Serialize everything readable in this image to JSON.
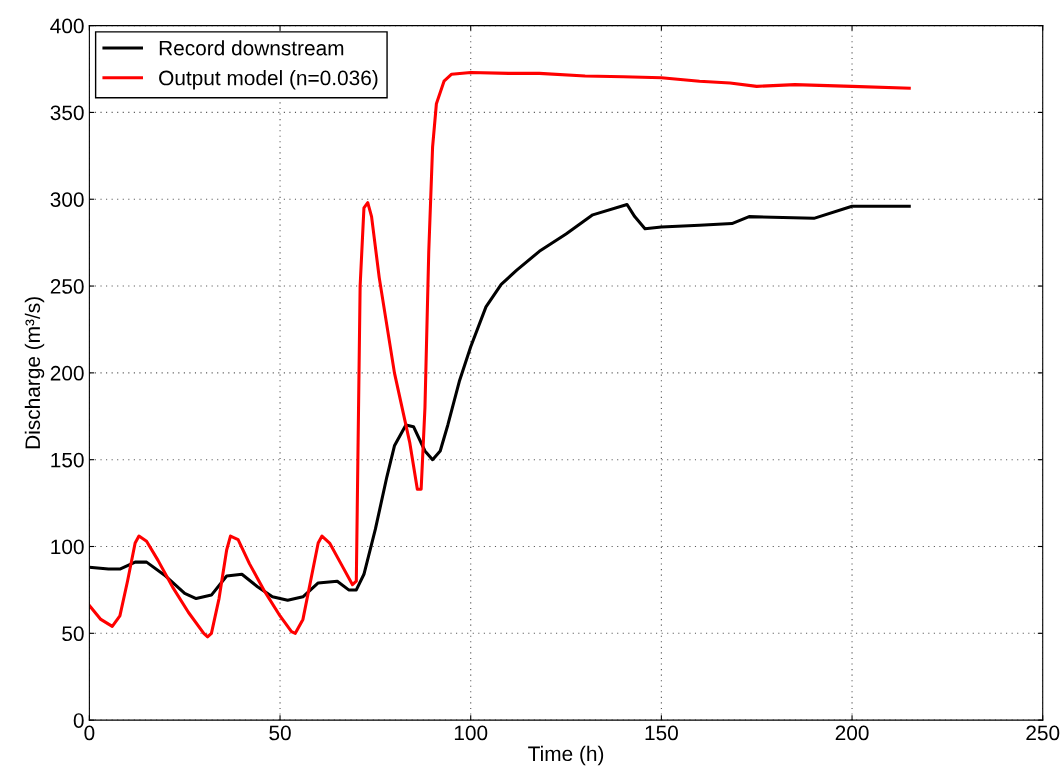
{
  "chart_data": {
    "type": "line",
    "xlabel": "Time (h)",
    "ylabel": "Discharge (m³/s)",
    "xlim": [
      0,
      250
    ],
    "ylim": [
      0,
      400
    ],
    "xticks": [
      0,
      50,
      100,
      150,
      200,
      250
    ],
    "yticks": [
      0,
      50,
      100,
      150,
      200,
      250,
      300,
      350,
      400
    ],
    "grid": true,
    "legend": "top left",
    "line_style": "solid",
    "series": [
      {
        "name": "Record downstream",
        "color": "#000000",
        "x": [
          0,
          5,
          8,
          12,
          15,
          20,
          25,
          28,
          32,
          36,
          40,
          44,
          48,
          52,
          56,
          60,
          65,
          68,
          70,
          72,
          75,
          78,
          80,
          83,
          85,
          88,
          90,
          92,
          94,
          97,
          100,
          104,
          108,
          112,
          118,
          125,
          132,
          141,
          143,
          145.7,
          150,
          160,
          168.5,
          173,
          190,
          200,
          215
        ],
        "values": [
          88,
          87,
          87,
          91,
          91,
          83,
          73,
          70,
          72,
          83,
          84,
          77,
          71,
          69,
          71,
          79,
          80,
          75,
          75,
          84,
          110,
          140,
          158,
          170,
          169,
          155,
          150,
          155,
          170,
          195,
          215,
          238,
          251,
          259,
          270,
          280,
          291,
          297,
          290,
          283,
          284,
          285,
          286,
          290,
          289,
          296,
          296
        ]
      },
      {
        "name": "Output model (n=0.036)",
        "color": "#ff0000",
        "x": [
          0,
          3,
          6,
          8,
          10,
          12,
          13,
          15,
          18,
          22,
          26,
          30,
          31,
          32,
          34,
          36,
          37,
          39,
          42,
          46,
          50,
          53,
          54,
          56,
          58,
          60,
          61,
          63,
          66,
          69,
          70,
          71,
          72,
          73,
          74,
          76,
          80,
          84,
          86,
          87,
          88,
          89,
          90,
          91,
          93,
          95,
          100,
          110,
          118,
          130,
          140,
          150,
          160,
          168,
          175,
          185,
          200,
          215
        ],
        "values": [
          66,
          58,
          54,
          60,
          80,
          102,
          106,
          103,
          92,
          76,
          62,
          50,
          48,
          50,
          70,
          98,
          106,
          104,
          90,
          74,
          60,
          51,
          50,
          58,
          80,
          102,
          106,
          102,
          90,
          78,
          80,
          250,
          295,
          298,
          290,
          255,
          200,
          160,
          133,
          133,
          180,
          270,
          330,
          355,
          368,
          372,
          373,
          372.5,
          372.5,
          371,
          370.5,
          370,
          368,
          367,
          365,
          366,
          365,
          364
        ]
      }
    ]
  }
}
